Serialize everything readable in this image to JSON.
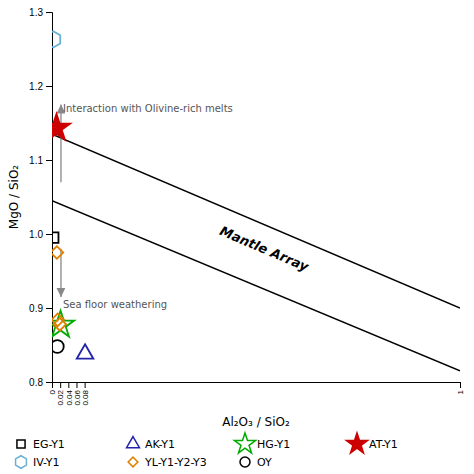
{
  "chart_data": {
    "type": "scatter",
    "x_label": "Al₂O₃ / SiO₂",
    "y_label": "MgO / SiO₂",
    "xlim": [
      0,
      1.0
    ],
    "ylim": [
      0.8,
      1.3
    ],
    "xticks": [
      0,
      0.02,
      0.04,
      0.06,
      0.08,
      1
    ],
    "yticks": [
      0.8,
      0.9,
      {
        "value": 1.0,
        "label": "1.0"
      },
      1.1,
      1.2,
      1.3
    ],
    "grid": false,
    "series": [
      {
        "type": "line",
        "color": "#000000",
        "x": [
          0,
          1.0
        ],
        "values": [
          1.135,
          0.9
        ]
      },
      {
        "type": "line",
        "color": "#000000",
        "x": [
          0,
          1.0
        ],
        "values": [
          1.045,
          0.815
        ]
      },
      {
        "type": "scatter",
        "name": "EG-Y1",
        "marker": "open-square",
        "color": "#000000",
        "x": [
          0.003
        ],
        "values": [
          0.995
        ]
      },
      {
        "type": "scatter",
        "name": "AK-Y1",
        "marker": "open-triangle",
        "color": "#2222aa",
        "x": [
          0.081
        ],
        "values": [
          0.838
        ]
      },
      {
        "type": "scatter",
        "name": "HG-Y1",
        "marker": "open-star",
        "color": "#00aa00",
        "x": [
          0.021
        ],
        "values": [
          0.877
        ]
      },
      {
        "type": "scatter",
        "name": "AT-Y1",
        "marker": "filled-star",
        "color": "#cc0000",
        "x": [
          0.011
        ],
        "values": [
          1.143
        ]
      },
      {
        "type": "scatter",
        "name": "IV-Y1",
        "marker": "open-hexagon",
        "color": "#6ab0d4",
        "x": [
          0.003
        ],
        "values": [
          1.263
        ]
      },
      {
        "type": "scatter",
        "name": "YL-Y1-Y2-Y3",
        "marker": "open-diamond",
        "color": "#e08000",
        "x": [
          0.012,
          0.014,
          0.019
        ],
        "values": [
          0.975,
          0.884,
          0.878
        ]
      },
      {
        "type": "scatter",
        "name": "OY",
        "marker": "open-circle",
        "color": "#000000",
        "x": [
          0.013
        ],
        "values": [
          0.848
        ]
      }
    ],
    "annotations": [
      {
        "text": "Mantle Array",
        "x": 0.52,
        "y": 0.98
      },
      {
        "text": "Interaction with Olivine-rich melts",
        "x": 0.027,
        "y": 1.175,
        "arrow": {
          "x": 0.022,
          "y_start": 1.07,
          "y_end": 1.175
        }
      },
      {
        "text": "Sea floor weathering",
        "x": 0.027,
        "y": 0.91,
        "arrow": {
          "x": 0.022,
          "y_start": 0.98,
          "y_end": 0.915
        }
      }
    ]
  }
}
